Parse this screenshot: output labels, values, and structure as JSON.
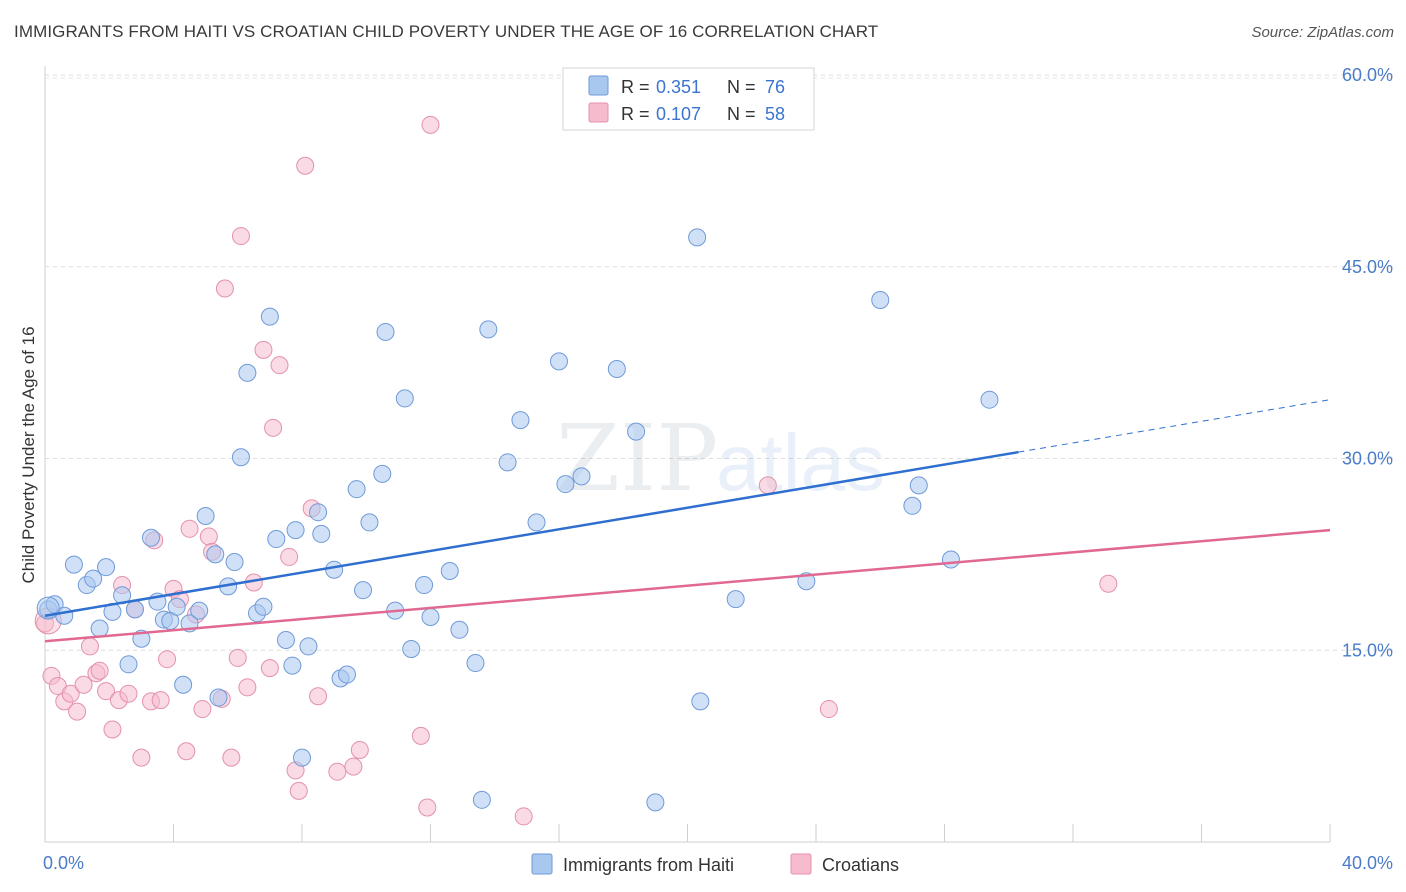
{
  "title": "IMMIGRANTS FROM HAITI VS CROATIAN CHILD POVERTY UNDER THE AGE OF 16 CORRELATION CHART",
  "source": "Source: ZipAtlas.com",
  "watermark": {
    "zip": "ZIP",
    "atlas": "atlas"
  },
  "legend": {
    "r_label": "R =",
    "n_label": "N =",
    "entries": [
      {
        "r": "0.351",
        "n": "76",
        "color": "#a9c8f0"
      },
      {
        "r": "0.107",
        "n": "58",
        "color": "#f6bccd"
      }
    ]
  },
  "chart_data": {
    "type": "scatter",
    "title": "IMMIGRANTS FROM HAITI VS CROATIAN CHILD POVERTY UNDER THE AGE OF 16 CORRELATION CHART",
    "xlabel": "",
    "ylabel": "Child Poverty Under the Age of 16",
    "xlim": [
      0,
      40
    ],
    "ylim": [
      0,
      60
    ],
    "x_tick_labels": [
      "0.0%",
      "40.0%"
    ],
    "y_ticks": [
      15,
      30,
      45,
      60
    ],
    "y_tick_labels": [
      "15.0%",
      "30.0%",
      "45.0%",
      "60.0%"
    ],
    "grid": true,
    "legend_position": "top-center",
    "series": [
      {
        "name": "Immigrants from Haiti",
        "color": "#a9c8f0",
        "edge": "#6f9ad8",
        "line_color": "#2f6fd0",
        "trend": {
          "x": [
            0,
            30.3,
            40
          ],
          "y": [
            17.7,
            30.5,
            34.6
          ],
          "solid_until": 30.3
        },
        "points": [
          [
            0.1,
            18.2
          ],
          [
            0.3,
            18.6
          ],
          [
            0.6,
            17.7
          ],
          [
            0.9,
            21.7
          ],
          [
            1.3,
            20.1
          ],
          [
            1.5,
            20.6
          ],
          [
            1.7,
            16.7
          ],
          [
            1.9,
            21.5
          ],
          [
            2.1,
            18.0
          ],
          [
            2.4,
            19.3
          ],
          [
            2.6,
            13.9
          ],
          [
            2.8,
            18.2
          ],
          [
            3.0,
            15.9
          ],
          [
            3.3,
            23.8
          ],
          [
            3.5,
            18.8
          ],
          [
            3.7,
            17.4
          ],
          [
            3.9,
            17.3
          ],
          [
            4.1,
            18.4
          ],
          [
            4.3,
            12.3
          ],
          [
            4.5,
            17.1
          ],
          [
            4.8,
            18.1
          ],
          [
            5.0,
            25.5
          ],
          [
            5.3,
            22.5
          ],
          [
            5.4,
            11.3
          ],
          [
            5.7,
            20.0
          ],
          [
            5.9,
            21.9
          ],
          [
            6.1,
            30.1
          ],
          [
            6.3,
            36.7
          ],
          [
            6.6,
            17.9
          ],
          [
            6.8,
            18.4
          ],
          [
            7.0,
            41.1
          ],
          [
            7.2,
            23.7
          ],
          [
            7.5,
            15.8
          ],
          [
            7.7,
            13.8
          ],
          [
            7.8,
            24.4
          ],
          [
            8.0,
            6.6
          ],
          [
            8.2,
            15.3
          ],
          [
            8.5,
            25.8
          ],
          [
            8.6,
            24.1
          ],
          [
            9.0,
            21.3
          ],
          [
            9.2,
            12.8
          ],
          [
            9.4,
            13.1
          ],
          [
            9.7,
            27.6
          ],
          [
            9.9,
            19.7
          ],
          [
            10.1,
            25.0
          ],
          [
            10.5,
            28.8
          ],
          [
            10.6,
            39.9
          ],
          [
            10.9,
            18.1
          ],
          [
            11.2,
            34.7
          ],
          [
            11.4,
            15.1
          ],
          [
            11.8,
            20.1
          ],
          [
            12.0,
            17.6
          ],
          [
            12.6,
            21.2
          ],
          [
            12.9,
            16.6
          ],
          [
            13.4,
            14.0
          ],
          [
            13.6,
            3.3
          ],
          [
            13.8,
            40.1
          ],
          [
            14.4,
            29.7
          ],
          [
            14.8,
            33.0
          ],
          [
            15.3,
            25.0
          ],
          [
            16.0,
            37.6
          ],
          [
            16.2,
            28.0
          ],
          [
            16.7,
            28.6
          ],
          [
            17.8,
            37.0
          ],
          [
            18.4,
            32.1
          ],
          [
            19.0,
            3.1
          ],
          [
            20.3,
            47.3
          ],
          [
            20.4,
            11.0
          ],
          [
            21.5,
            19.0
          ],
          [
            23.7,
            20.4
          ],
          [
            26.0,
            42.4
          ],
          [
            27.0,
            26.3
          ],
          [
            27.2,
            27.9
          ],
          [
            28.2,
            22.1
          ],
          [
            29.4,
            34.6
          ]
        ]
      },
      {
        "name": "Croatians",
        "color": "#f6bccd",
        "edge": "#e491ac",
        "line_color": "#e06892",
        "trend": {
          "x": [
            0,
            40
          ],
          "y": [
            15.7,
            24.4
          ]
        },
        "points": [
          [
            0.0,
            17.1
          ],
          [
            0.2,
            13.0
          ],
          [
            0.4,
            12.2
          ],
          [
            0.6,
            11.0
          ],
          [
            0.8,
            11.6
          ],
          [
            1.0,
            10.2
          ],
          [
            1.2,
            12.3
          ],
          [
            1.4,
            15.3
          ],
          [
            1.6,
            13.2
          ],
          [
            1.7,
            13.4
          ],
          [
            1.9,
            11.8
          ],
          [
            2.1,
            8.8
          ],
          [
            2.3,
            11.1
          ],
          [
            2.4,
            20.1
          ],
          [
            2.6,
            11.6
          ],
          [
            2.8,
            18.2
          ],
          [
            3.0,
            6.6
          ],
          [
            3.3,
            11.0
          ],
          [
            3.4,
            23.6
          ],
          [
            3.6,
            11.1
          ],
          [
            3.8,
            14.3
          ],
          [
            4.0,
            19.8
          ],
          [
            4.2,
            19.0
          ],
          [
            4.4,
            7.1
          ],
          [
            4.5,
            24.5
          ],
          [
            4.7,
            17.8
          ],
          [
            4.9,
            10.4
          ],
          [
            5.1,
            23.9
          ],
          [
            5.2,
            22.7
          ],
          [
            5.5,
            11.2
          ],
          [
            5.6,
            43.3
          ],
          [
            5.8,
            6.6
          ],
          [
            6.0,
            14.4
          ],
          [
            6.1,
            47.4
          ],
          [
            6.3,
            12.1
          ],
          [
            6.5,
            20.3
          ],
          [
            6.8,
            38.5
          ],
          [
            7.0,
            13.6
          ],
          [
            7.1,
            32.4
          ],
          [
            7.3,
            37.3
          ],
          [
            7.6,
            22.3
          ],
          [
            7.8,
            5.6
          ],
          [
            7.9,
            4.0
          ],
          [
            8.1,
            52.9
          ],
          [
            8.3,
            26.1
          ],
          [
            8.5,
            11.4
          ],
          [
            9.1,
            5.5
          ],
          [
            9.6,
            5.9
          ],
          [
            9.8,
            7.2
          ],
          [
            11.7,
            8.3
          ],
          [
            11.9,
            2.7
          ],
          [
            12.0,
            56.1
          ],
          [
            14.9,
            2.0
          ],
          [
            22.5,
            27.9
          ],
          [
            24.4,
            10.4
          ],
          [
            33.1,
            20.2
          ]
        ]
      }
    ]
  },
  "bottom_legend": [
    "Immigrants from Haiti",
    "Croatians"
  ]
}
